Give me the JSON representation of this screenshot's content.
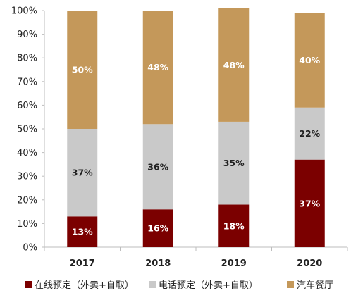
{
  "chart_data": {
    "type": "bar",
    "stacked": true,
    "categories": [
      "2017",
      "2018",
      "2019",
      "2020"
    ],
    "series": [
      {
        "name": "在线预定（外卖+自取）",
        "values": [
          13,
          16,
          18,
          37
        ],
        "labels": [
          "13%",
          "16%",
          "18%",
          "37%"
        ],
        "color": "#7b0000",
        "label_color": "#ffffff"
      },
      {
        "name": "电话预定（外卖+自取）",
        "values": [
          37,
          36,
          35,
          22
        ],
        "labels": [
          "37%",
          "36%",
          "35%",
          "22%"
        ],
        "color": "#c9c9c9",
        "label_color": "#222222"
      },
      {
        "name": "汽车餐厅",
        "values": [
          50,
          48,
          48,
          40
        ],
        "labels": [
          "50%",
          "48%",
          "48%",
          "40%"
        ],
        "color": "#c4985a",
        "label_color": "#ffffff"
      }
    ],
    "y_ticks": [
      "0%",
      "10%",
      "20%",
      "30%",
      "40%",
      "50%",
      "60%",
      "70%",
      "80%",
      "90%",
      "100%"
    ],
    "ylim": [
      0,
      100
    ],
    "grid": false,
    "legend_position": "bottom"
  }
}
